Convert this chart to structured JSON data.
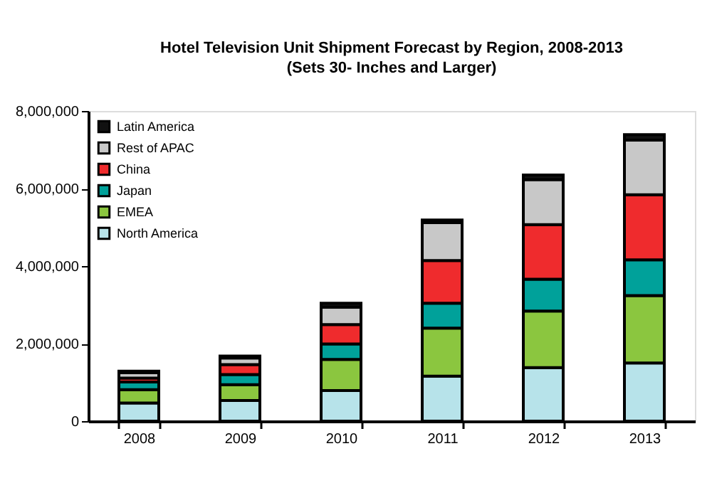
{
  "chart_data": {
    "type": "bar",
    "title": "Hotel Television Unit Shipment Forecast by Region, 2008-2013",
    "subtitle": "(Sets 30- Inches and Larger)",
    "categories": [
      "2008",
      "2009",
      "2010",
      "2011",
      "2012",
      "2013"
    ],
    "stacked": true,
    "series": [
      {
        "name": "North America",
        "color": "#b7e3ea",
        "values": [
          470000,
          530000,
          790000,
          1160000,
          1380000,
          1500000
        ]
      },
      {
        "name": "EMEA",
        "color": "#8bc63f",
        "values": [
          340000,
          410000,
          800000,
          1240000,
          1460000,
          1740000
        ]
      },
      {
        "name": "Japan",
        "color": "#00a19a",
        "values": [
          200000,
          260000,
          400000,
          640000,
          820000,
          920000
        ]
      },
      {
        "name": "China",
        "color": "#ef2b2d",
        "values": [
          100000,
          260000,
          500000,
          1100000,
          1410000,
          1680000
        ]
      },
      {
        "name": "Rest of APAC",
        "color": "#c8c8c8",
        "values": [
          140000,
          170000,
          450000,
          980000,
          1160000,
          1410000
        ]
      },
      {
        "name": "Latin America",
        "color": "#111111",
        "values": [
          40000,
          50000,
          100000,
          70000,
          120000,
          140000
        ]
      }
    ],
    "ylim": [
      0,
      8000000
    ],
    "yticks": [
      {
        "value": 0,
        "label": "0"
      },
      {
        "value": 2000000,
        "label": "2,000,000"
      },
      {
        "value": 4000000,
        "label": "4,000,000"
      },
      {
        "value": 6000000,
        "label": "6,000,000"
      },
      {
        "value": 8000000,
        "label": "8,000,000"
      }
    ],
    "legend": "top left",
    "grid": false
  }
}
